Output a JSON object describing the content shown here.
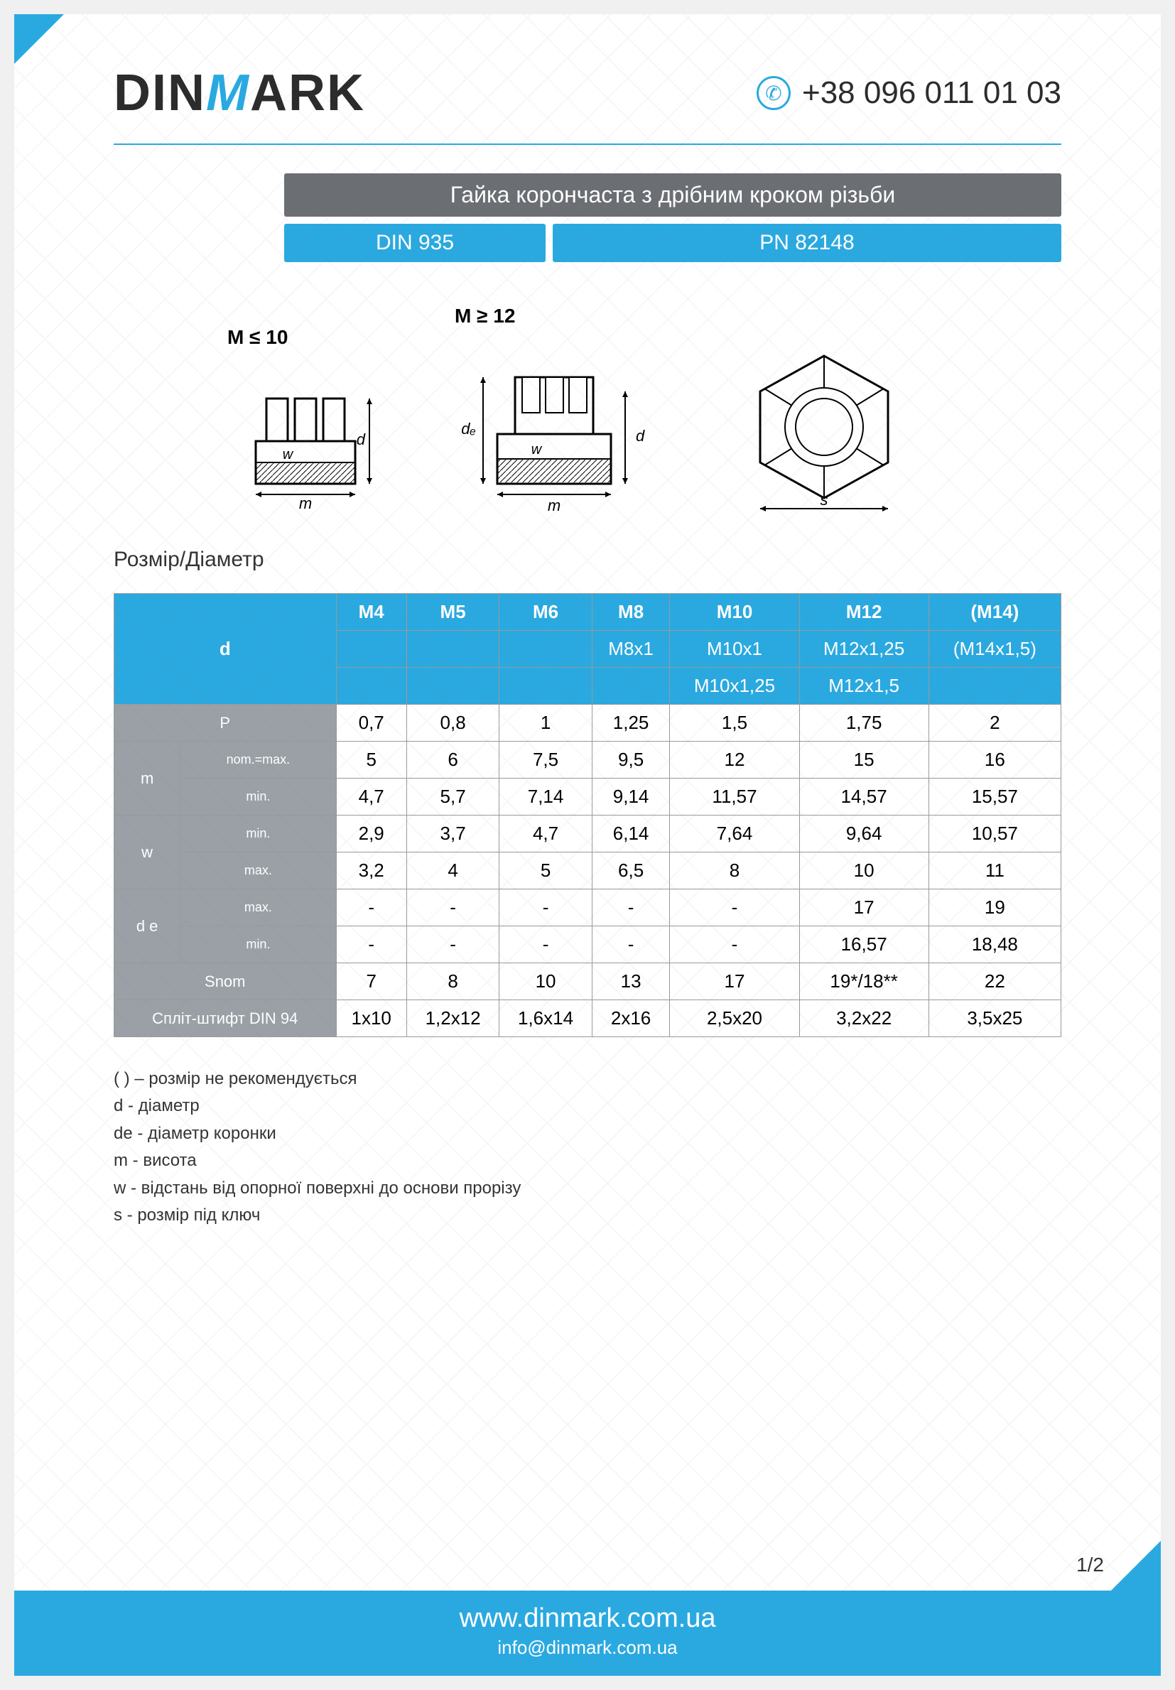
{
  "brand": {
    "text_before_m": "DIN",
    "m": "M",
    "text_after_m": "ARK"
  },
  "phone": "+38 096 011 01 03",
  "title": "Гайка корончаста з дрібним кроком різьби",
  "standards": {
    "left": "DIN 935",
    "right": "PN 82148"
  },
  "diagram_labels": {
    "left": "M ≤ 10",
    "mid": "M ≥ 12"
  },
  "section_heading": "Розмір/Діаметр",
  "colors": {
    "accent": "#2aa9e0",
    "grey": "#9aa0a6",
    "header_grey": "#6b6e73",
    "text": "#2c2c2c",
    "border": "#999999"
  },
  "table": {
    "size_cols": [
      "M4",
      "M5",
      "M6",
      "M8",
      "M10",
      "M12",
      "(M14)"
    ],
    "d_row2": [
      "",
      "",
      "",
      "M8x1",
      "M10x1",
      "M12x1,25",
      "(M14x1,5)"
    ],
    "d_row3": [
      "",
      "",
      "",
      "",
      "M10x1,25",
      "M12x1,5",
      ""
    ],
    "rows": [
      {
        "label": "P",
        "sub": "",
        "vals": [
          "0,7",
          "0,8",
          "1",
          "1,25",
          "1,5",
          "1,75",
          "2"
        ]
      },
      {
        "label": "m",
        "sub": "nom.=max.",
        "vals": [
          "5",
          "6",
          "7,5",
          "9,5",
          "12",
          "15",
          "16"
        ]
      },
      {
        "label": "",
        "sub": "min.",
        "vals": [
          "4,7",
          "5,7",
          "7,14",
          "9,14",
          "11,57",
          "14,57",
          "15,57"
        ]
      },
      {
        "label": "w",
        "sub": "min.",
        "vals": [
          "2,9",
          "3,7",
          "4,7",
          "6,14",
          "7,64",
          "9,64",
          "10,57"
        ]
      },
      {
        "label": "",
        "sub": "max.",
        "vals": [
          "3,2",
          "4",
          "5",
          "6,5",
          "8",
          "10",
          "11"
        ]
      },
      {
        "label": "d e",
        "sub": "max.",
        "vals": [
          "-",
          "-",
          "-",
          "-",
          "-",
          "17",
          "19"
        ]
      },
      {
        "label": "",
        "sub": "min.",
        "vals": [
          "-",
          "-",
          "-",
          "-",
          "-",
          "16,57",
          "18,48"
        ]
      },
      {
        "label": "Snom",
        "sub": "",
        "vals": [
          "7",
          "8",
          "10",
          "13",
          "17",
          "19*/18**",
          "22"
        ]
      },
      {
        "label": "Спліт-штифт DIN 94",
        "sub": "",
        "vals": [
          "1x10",
          "1,2x12",
          "1,6x14",
          "2x16",
          "2,5x20",
          "3,2x22",
          "3,5x25"
        ]
      }
    ],
    "d_label": "d"
  },
  "legend": [
    "( ) – розмір не рекомендується",
    "d - діаметр",
    "de - діаметр коронки",
    "m - висота",
    "w - відстань від опорної поверхні до основи прорізу",
    "s - розмір під ключ"
  ],
  "footer": {
    "url": "www.dinmark.com.ua",
    "email": "info@dinmark.com.ua"
  },
  "page_number": "1/2"
}
